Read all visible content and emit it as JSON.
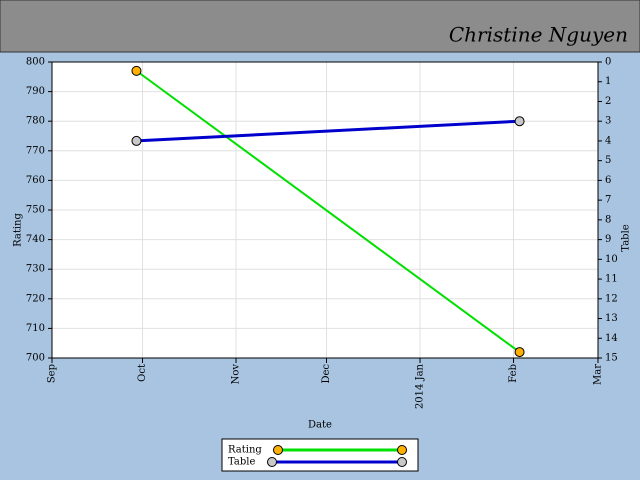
{
  "header": {
    "name": "Christine Nguyen"
  },
  "chart_data": {
    "type": "line",
    "x_label": "Date",
    "y_label": "Rating",
    "y2_label": "Table",
    "x": [
      "2013-09-29",
      "2014-02-03"
    ],
    "series": [
      {
        "name": "Rating",
        "color": "#00e000",
        "marker_color": "#ffb000",
        "values": [
          797,
          702
        ]
      },
      {
        "name": "Table",
        "color": "#0000cc",
        "marker_color": "#c8c8c8",
        "values": [
          4,
          3
        ],
        "axis": "y2"
      }
    ],
    "xlim": [
      "2013-09-01",
      "2014-03-01"
    ],
    "xticks": [
      {
        "value": "2013-09-01",
        "label": "Sep"
      },
      {
        "value": "2013-10-01",
        "label": "Oct"
      },
      {
        "value": "2013-11-01",
        "label": "Nov"
      },
      {
        "value": "2013-12-01",
        "label": "Dec"
      },
      {
        "value": "2014-01-01",
        "label": "2014 Jan"
      },
      {
        "value": "2014-02-01",
        "label": "Feb"
      },
      {
        "value": "2014-03-01",
        "label": "Mar"
      }
    ],
    "ylim": [
      700,
      800
    ],
    "yticks": [
      700,
      710,
      720,
      730,
      740,
      750,
      760,
      770,
      780,
      790,
      800
    ],
    "y2lim": [
      15,
      0
    ],
    "y2ticks": [
      0,
      1,
      2,
      3,
      4,
      5,
      6,
      7,
      8,
      9,
      10,
      11,
      12,
      13,
      14,
      15
    ],
    "grid": true,
    "legend": "bottom"
  }
}
